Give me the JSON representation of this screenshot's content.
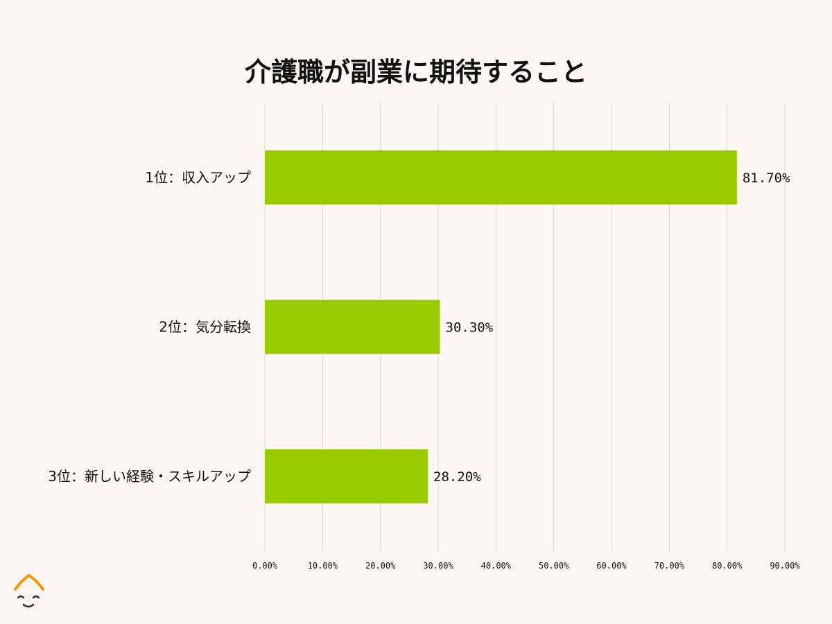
{
  "chart_data": {
    "type": "bar",
    "orientation": "horizontal",
    "title": "介護職が副業に期待すること",
    "categories": [
      "1位：収入アップ",
      "2位：気分転換",
      "3位：新しい経験・スキルアップ"
    ],
    "values": [
      81.7,
      30.3,
      28.2
    ],
    "value_labels": [
      "81.70%",
      "30.30%",
      "28.20%"
    ],
    "xlim": [
      0,
      90
    ],
    "x_ticks": [
      0,
      10,
      20,
      30,
      40,
      50,
      60,
      70,
      80,
      90
    ],
    "x_tick_labels": [
      "0.00%",
      "10.00%",
      "20.00%",
      "30.00%",
      "40.00%",
      "50.00%",
      "60.00%",
      "70.00%",
      "80.00%",
      "90.00%"
    ],
    "grid": true,
    "legend": "none",
    "bar_color": "#99cc00"
  },
  "logo": {
    "icon": "face-logo-icon",
    "accent": "#f39800",
    "line": "#333333"
  }
}
